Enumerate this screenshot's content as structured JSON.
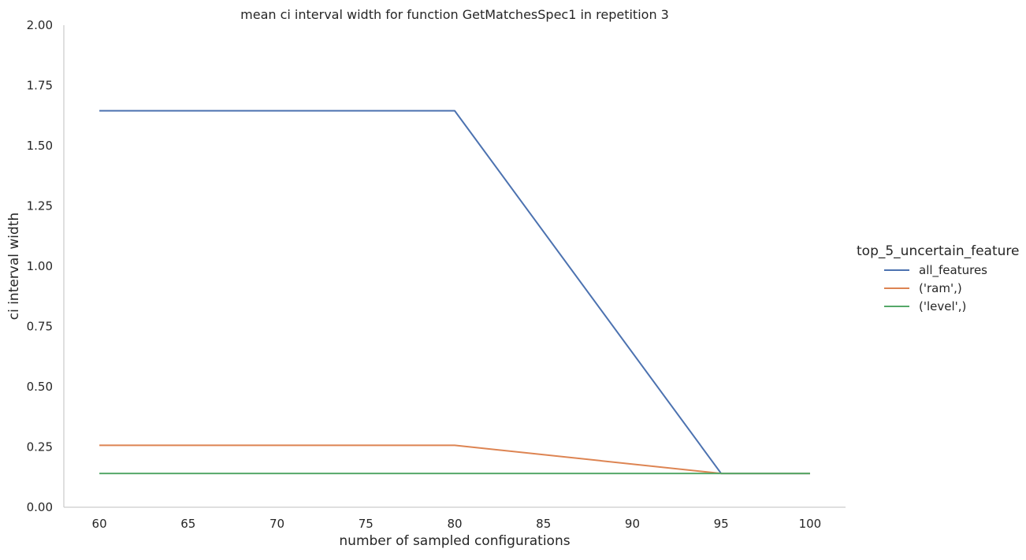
{
  "chart_data": {
    "type": "line",
    "title": "mean ci interval width for function GetMatchesSpec1 in repetition 3",
    "xlabel": "number of sampled configurations",
    "ylabel": "ci interval width",
    "xlim": [
      58,
      102
    ],
    "ylim": [
      0,
      2.0
    ],
    "xticks": [
      60,
      65,
      70,
      75,
      80,
      85,
      90,
      95,
      100
    ],
    "xtick_labels": [
      "60",
      "65",
      "70",
      "75",
      "80",
      "85",
      "90",
      "95",
      "100"
    ],
    "yticks": [
      0,
      0.25,
      0.5,
      0.75,
      1.0,
      1.25,
      1.5,
      1.75,
      2.0
    ],
    "ytick_labels": [
      "0.00",
      "0.25",
      "0.50",
      "0.75",
      "1.00",
      "1.25",
      "1.50",
      "1.75",
      "2.00"
    ],
    "grid": false,
    "legend": {
      "title": "top_5_uncertain_feature",
      "placement": "right"
    },
    "x": [
      60,
      80,
      95,
      100
    ],
    "series": [
      {
        "name": "all_features",
        "color": "#4c72b0",
        "values": [
          1.645,
          1.645,
          0.14,
          0.14
        ]
      },
      {
        "name": "('ram',)",
        "color": "#dd8452",
        "values": [
          0.257,
          0.257,
          0.14,
          0.14
        ]
      },
      {
        "name": "('level',)",
        "color": "#55a868",
        "values": [
          0.14,
          0.14,
          0.14,
          0.14
        ]
      }
    ]
  }
}
